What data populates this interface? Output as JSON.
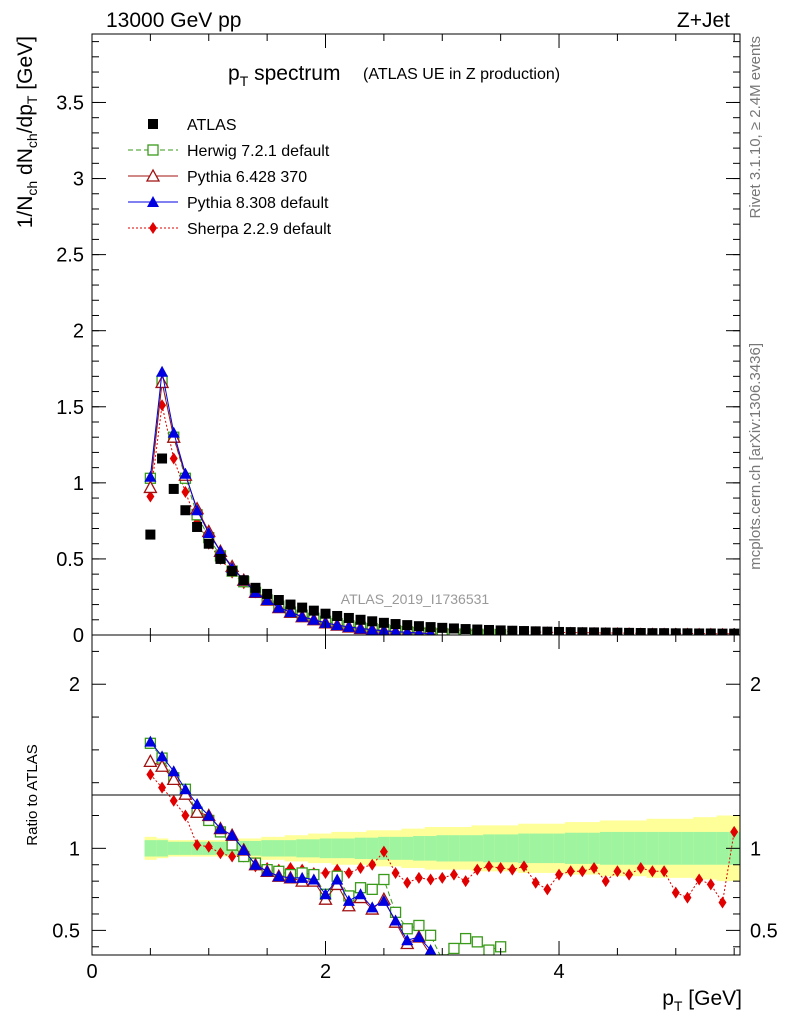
{
  "header": {
    "left": "13000 GeV pp",
    "right": "Z+Jet"
  },
  "side": {
    "rivet": "Rivet 3.1.10, ≥ 2.4M events",
    "mcplots": "mcplots.cern.ch [arXiv:1306.3436]"
  },
  "watermark": "ATLAS_2019_I1736531",
  "colors": {
    "atlas": "#000000",
    "herwig": "#3a9a1a",
    "pythia6": "#a01010",
    "pythia8": "#0000e0",
    "sherpa": "#e00000",
    "band_inner": "#9ff59f",
    "band_outer": "#ffff99"
  },
  "chart_data": [
    {
      "type": "scatter",
      "title": "p_T spectrum",
      "title_main": "p",
      "title_sub": "T",
      "title_tail": " spectrum",
      "title_suffix": "(ATLAS UE in Z production)",
      "ylabel": "1/N_ch dN_ch/dp_T [GeV]",
      "xlim": [
        0,
        5.55
      ],
      "ylim": [
        0,
        3.95
      ],
      "yticks": [
        {
          "v": 0,
          "t": "0"
        },
        {
          "v": 0.5,
          "t": "0.5"
        },
        {
          "v": 1,
          "t": "1"
        },
        {
          "v": 1.5,
          "t": "1.5"
        },
        {
          "v": 2,
          "t": "2"
        },
        {
          "v": 2.5,
          "t": "2.5"
        },
        {
          "v": 3,
          "t": "3"
        },
        {
          "v": 3.5,
          "t": "3.5"
        }
      ],
      "legend_position": "top-left",
      "x": [
        0.5,
        0.6,
        0.7,
        0.8,
        0.9,
        1.0,
        1.1,
        1.2,
        1.3,
        1.4,
        1.5,
        1.6,
        1.7,
        1.8,
        1.9,
        2.0,
        2.1,
        2.2,
        2.3,
        2.4,
        2.5,
        2.6,
        2.7,
        2.8,
        2.9,
        3.0,
        3.1,
        3.2,
        3.3,
        3.4,
        3.5,
        3.6,
        3.7,
        3.8,
        3.9,
        4.0,
        4.1,
        4.2,
        4.3,
        4.4,
        4.5,
        4.6,
        4.7,
        4.8,
        4.9,
        5.0,
        5.1,
        5.2,
        5.3,
        5.4,
        5.5
      ],
      "series": [
        {
          "name": "ATLAS",
          "key": "atlas",
          "values": [
            0.66,
            1.16,
            0.96,
            0.82,
            0.71,
            0.6,
            0.5,
            0.42,
            0.36,
            0.31,
            0.27,
            0.23,
            0.2,
            0.18,
            0.16,
            0.14,
            0.125,
            0.112,
            0.1,
            0.09,
            0.08,
            0.072,
            0.065,
            0.058,
            0.052,
            0.047,
            0.043,
            0.039,
            0.036,
            0.033,
            0.03,
            0.028,
            0.026,
            0.024,
            0.022,
            0.02,
            0.019,
            0.018,
            0.017,
            0.016,
            0.015,
            0.014,
            0.013,
            0.012,
            0.012,
            0.011,
            0.011,
            0.01,
            0.01,
            0.009,
            0.009
          ]
        },
        {
          "name": "Herwig 7.2.1 default",
          "key": "herwig",
          "values": [
            1.03,
            1.67,
            1.3,
            1.03,
            0.79,
            0.64,
            0.52,
            0.42,
            0.35,
            0.28,
            0.23,
            0.19,
            0.15,
            0.13,
            0.11,
            0.09,
            0.075,
            0.06,
            0.05,
            0.042,
            0.035,
            0.028,
            0.022,
            0.017,
            0.013,
            0.01,
            0.008,
            0.006,
            0.005,
            0.004,
            0.003
          ]
        },
        {
          "name": "Pythia 6.428 370",
          "key": "pythia6",
          "values": [
            0.97,
            1.66,
            1.3,
            1.05,
            0.83,
            0.68,
            0.55,
            0.45,
            0.36,
            0.28,
            0.23,
            0.18,
            0.15,
            0.12,
            0.1,
            0.08,
            0.065,
            0.053,
            0.043,
            0.035,
            0.028,
            0.022,
            0.017,
            0.013,
            0.01
          ]
        },
        {
          "name": "Pythia 8.308 default",
          "key": "pythia8",
          "values": [
            1.04,
            1.73,
            1.33,
            1.06,
            0.82,
            0.67,
            0.55,
            0.44,
            0.36,
            0.28,
            0.23,
            0.18,
            0.15,
            0.12,
            0.1,
            0.08,
            0.065,
            0.053,
            0.043,
            0.035,
            0.028,
            0.022,
            0.017,
            0.013,
            0.01
          ]
        },
        {
          "name": "Sherpa 2.2.9 default",
          "key": "sherpa",
          "values": [
            0.91,
            1.51,
            1.16,
            0.94,
            0.74,
            0.6,
            0.5,
            0.41,
            0.34,
            0.28,
            0.24,
            0.2,
            0.17,
            0.15,
            0.13,
            0.115,
            0.102,
            0.09,
            0.08,
            0.072,
            0.064,
            0.057,
            0.051,
            0.045,
            0.04,
            0.036,
            0.033,
            0.03,
            0.028,
            0.026,
            0.024,
            0.022,
            0.021,
            0.019,
            0.018,
            0.017,
            0.016,
            0.015,
            0.014,
            0.013,
            0.013,
            0.012,
            0.011,
            0.011,
            0.01,
            0.01,
            0.01,
            0.009,
            0.009,
            0.008,
            0.008
          ]
        }
      ]
    },
    {
      "type": "scatter",
      "ylabel": "Ratio to ATLAS",
      "xlabel": "p_T [GeV]",
      "xlabel_main": "p",
      "xlabel_sub": "T",
      "xlabel_tail": " [GeV]",
      "xlim": [
        0,
        5.55
      ],
      "ylim": [
        0.35,
        2.3
      ],
      "yticks": [
        {
          "v": 0.5,
          "t": "0.5"
        },
        {
          "v": 1,
          "t": "1"
        },
        {
          "v": 2,
          "t": "2"
        }
      ],
      "xticks": [
        {
          "v": 0,
          "t": "0"
        },
        {
          "v": 2,
          "t": "2"
        },
        {
          "v": 4,
          "t": "4"
        }
      ],
      "reference": 1,
      "bands": {
        "inner_halfwidth": [
          0.05,
          0.05,
          0.04,
          0.04,
          0.04,
          0.04,
          0.04,
          0.04,
          0.045,
          0.045,
          0.05,
          0.05,
          0.05,
          0.055,
          0.055,
          0.06,
          0.06,
          0.06,
          0.065,
          0.065,
          0.07,
          0.07,
          0.07,
          0.075,
          0.075,
          0.08,
          0.08,
          0.08,
          0.08,
          0.085,
          0.085,
          0.085,
          0.09,
          0.09,
          0.09,
          0.09,
          0.095,
          0.095,
          0.095,
          0.1,
          0.1,
          0.1,
          0.1,
          0.1,
          0.1,
          0.1,
          0.1,
          0.1,
          0.1,
          0.1,
          0.1
        ],
        "outer_halfwidth": [
          0.07,
          0.06,
          0.05,
          0.05,
          0.05,
          0.05,
          0.05,
          0.05,
          0.06,
          0.06,
          0.07,
          0.07,
          0.08,
          0.08,
          0.09,
          0.09,
          0.1,
          0.1,
          0.1,
          0.11,
          0.11,
          0.11,
          0.12,
          0.12,
          0.13,
          0.13,
          0.13,
          0.13,
          0.14,
          0.14,
          0.14,
          0.14,
          0.15,
          0.15,
          0.15,
          0.15,
          0.16,
          0.16,
          0.16,
          0.17,
          0.17,
          0.17,
          0.17,
          0.18,
          0.18,
          0.18,
          0.18,
          0.19,
          0.19,
          0.2,
          0.2
        ]
      },
      "x": [
        0.5,
        0.6,
        0.7,
        0.8,
        0.9,
        1.0,
        1.1,
        1.2,
        1.3,
        1.4,
        1.5,
        1.6,
        1.7,
        1.8,
        1.9,
        2.0,
        2.1,
        2.2,
        2.3,
        2.4,
        2.5,
        2.6,
        2.7,
        2.8,
        2.9,
        3.0,
        3.1,
        3.2,
        3.3,
        3.4,
        3.5,
        3.6,
        3.7,
        3.8,
        3.9,
        4.0,
        4.1,
        4.2,
        4.3,
        4.4,
        4.5,
        4.6,
        4.7,
        4.8,
        4.9,
        5.0,
        5.1,
        5.2,
        5.3,
        5.4,
        5.5
      ],
      "series": [
        {
          "name": "Herwig 7.2.1 default",
          "key": "herwig",
          "values": [
            1.64,
            1.55,
            1.43,
            1.36,
            1.22,
            1.17,
            1.1,
            1.02,
            0.95,
            0.91,
            0.87,
            0.86,
            0.84,
            0.85,
            0.84,
            0.72,
            0.83,
            0.71,
            0.76,
            0.75,
            0.81,
            0.61,
            0.51,
            0.53,
            0.47,
            0.32,
            0.39,
            0.45,
            0.43,
            0.38,
            0.4
          ]
        },
        {
          "name": "Pythia 6.428 370",
          "key": "pythia6",
          "values": [
            1.53,
            1.5,
            1.42,
            1.33,
            1.22,
            1.2,
            1.12,
            1.08,
            0.99,
            0.9,
            0.86,
            0.83,
            0.82,
            0.8,
            0.8,
            0.69,
            0.78,
            0.65,
            0.7,
            0.63,
            0.69,
            0.55,
            0.42,
            0.46,
            0.35
          ]
        },
        {
          "name": "Pythia 8.308 default",
          "key": "pythia8",
          "values": [
            1.65,
            1.56,
            1.47,
            1.36,
            1.27,
            1.2,
            1.12,
            1.08,
            0.99,
            0.9,
            0.86,
            0.83,
            0.82,
            0.82,
            0.81,
            0.72,
            0.81,
            0.68,
            0.72,
            0.64,
            0.68,
            0.56,
            0.44,
            0.46,
            0.38
          ]
        },
        {
          "name": "Sherpa 2.2.9 default",
          "key": "sherpa",
          "values": [
            1.45,
            1.37,
            1.29,
            1.2,
            1.02,
            1.01,
            0.97,
            0.95,
            0.95,
            0.89,
            0.88,
            0.87,
            0.88,
            0.87,
            0.85,
            0.85,
            0.87,
            0.85,
            0.88,
            0.9,
            0.98,
            0.85,
            0.79,
            0.82,
            0.81,
            0.82,
            0.84,
            0.8,
            0.87,
            0.89,
            0.88,
            0.87,
            0.89,
            0.79,
            0.75,
            0.84,
            0.86,
            0.86,
            0.88,
            0.8,
            0.86,
            0.84,
            0.88,
            0.86,
            0.86,
            0.73,
            0.7,
            0.81,
            0.78,
            0.67,
            1.1
          ]
        }
      ]
    }
  ]
}
